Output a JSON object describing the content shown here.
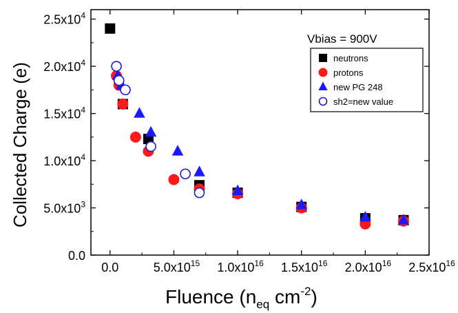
{
  "chart_data": {
    "type": "scatter",
    "title": "",
    "annotation": "Vbias = 900V",
    "ylabel": "Collected Charge (e)",
    "xlabel": {
      "main": "Fluence (n",
      "sub": "eq",
      "mid": " cm",
      "sup": "-2",
      "end": ")"
    },
    "xlim": [
      -1500000000000000.0,
      2.5e+16
    ],
    "ylim": [
      0,
      26000
    ],
    "grid": false,
    "legend_position": "top-right",
    "x_ticks": [
      {
        "value": 0,
        "label": "0.0"
      },
      {
        "value": 5000000000000000.0,
        "mant": "5.0x10",
        "exp": "15"
      },
      {
        "value": 1e+16,
        "mant": "1.0x10",
        "exp": "16"
      },
      {
        "value": 1.5e+16,
        "mant": "1.5x10",
        "exp": "16"
      },
      {
        "value": 2e+16,
        "mant": "2.0x10",
        "exp": "16"
      },
      {
        "value": 2.5e+16,
        "mant": "2.5x10",
        "exp": "16"
      }
    ],
    "y_ticks": [
      {
        "value": 0,
        "label": "0.0"
      },
      {
        "value": 5000,
        "mant": "5.0x10",
        "exp": "3"
      },
      {
        "value": 10000,
        "mant": "1.0x10",
        "exp": "4"
      },
      {
        "value": 15000,
        "mant": "1.5x10",
        "exp": "4"
      },
      {
        "value": 20000,
        "mant": "2.0x10",
        "exp": "4"
      },
      {
        "value": 25000,
        "mant": "2.5x10",
        "exp": "4"
      }
    ],
    "series": [
      {
        "name": "neutrons",
        "marker": "square",
        "color": "#000000",
        "points": [
          [
            0,
            24000
          ],
          [
            1000000000000000.0,
            16000
          ],
          [
            3000000000000000.0,
            12300
          ],
          [
            7000000000000000.0,
            7400
          ],
          [
            1e+16,
            6600
          ],
          [
            1.5e+16,
            5100
          ],
          [
            2e+16,
            3900
          ],
          [
            2.3e+16,
            3700
          ]
        ]
      },
      {
        "name": "protons",
        "marker": "circle",
        "color": "#ff1a1a",
        "points": [
          [
            500000000000000.0,
            19000
          ],
          [
            700000000000000.0,
            18000
          ],
          [
            1000000000000000.0,
            16000
          ],
          [
            2000000000000000.0,
            12500
          ],
          [
            3000000000000000.0,
            11000
          ],
          [
            5000000000000000.0,
            8000
          ],
          [
            7000000000000000.0,
            7000
          ],
          [
            1e+16,
            6500
          ],
          [
            1.5e+16,
            5000
          ],
          [
            2e+16,
            3300
          ],
          [
            2.3e+16,
            3600
          ]
        ]
      },
      {
        "name": "new PG 248",
        "marker": "triangle",
        "color": "#1a1aff",
        "points": [
          [
            600000000000000.0,
            19000
          ],
          [
            900000000000000.0,
            18000
          ],
          [
            2300000000000000.0,
            15000
          ],
          [
            3200000000000000.0,
            13000
          ],
          [
            5300000000000000.0,
            11000
          ],
          [
            7000000000000000.0,
            8800
          ],
          [
            1e+16,
            6800
          ],
          [
            1.5e+16,
            5300
          ],
          [
            2e+16,
            4000
          ],
          [
            2.3e+16,
            3700
          ]
        ]
      },
      {
        "name": "sh2=new value",
        "marker": "open-circle",
        "color": "#1a1acc",
        "points": [
          [
            500000000000000.0,
            20000
          ],
          [
            700000000000000.0,
            18500
          ],
          [
            1200000000000000.0,
            17500
          ],
          [
            3200000000000000.0,
            11500
          ],
          [
            5900000000000000.0,
            8600
          ],
          [
            7000000000000000.0,
            6600
          ]
        ]
      }
    ]
  }
}
